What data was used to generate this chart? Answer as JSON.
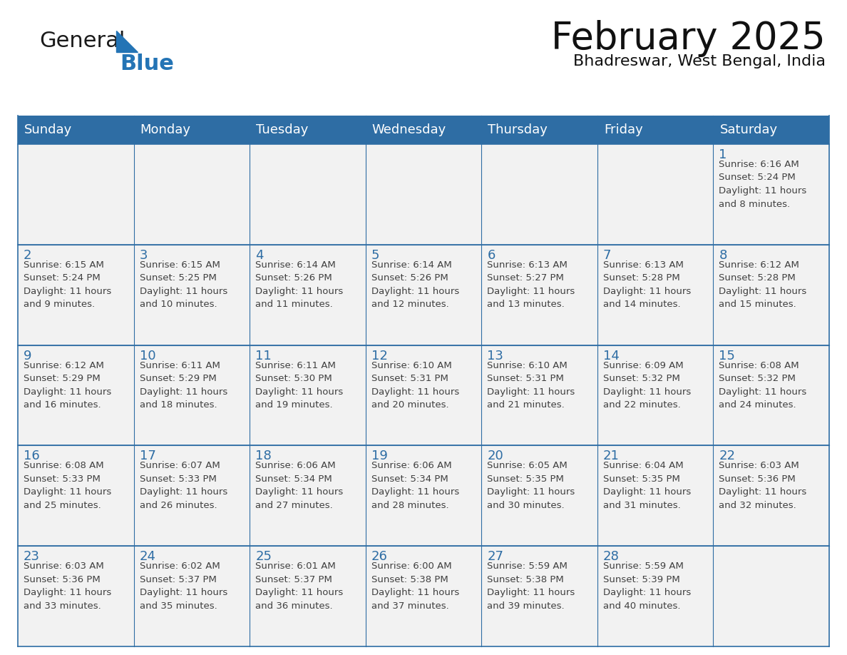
{
  "title": "February 2025",
  "subtitle": "Bhadreswar, West Bengal, India",
  "header_bg": "#2E6DA4",
  "header_text_color": "#FFFFFF",
  "cell_bg": "#F2F2F2",
  "day_number_color": "#2E6DA4",
  "cell_text_color": "#404040",
  "border_color": "#2E6DA4",
  "days_of_week": [
    "Sunday",
    "Monday",
    "Tuesday",
    "Wednesday",
    "Thursday",
    "Friday",
    "Saturday"
  ],
  "weeks": [
    [
      {
        "day": null,
        "info": null
      },
      {
        "day": null,
        "info": null
      },
      {
        "day": null,
        "info": null
      },
      {
        "day": null,
        "info": null
      },
      {
        "day": null,
        "info": null
      },
      {
        "day": null,
        "info": null
      },
      {
        "day": "1",
        "info": "Sunrise: 6:16 AM\nSunset: 5:24 PM\nDaylight: 11 hours\nand 8 minutes."
      }
    ],
    [
      {
        "day": "2",
        "info": "Sunrise: 6:15 AM\nSunset: 5:24 PM\nDaylight: 11 hours\nand 9 minutes."
      },
      {
        "day": "3",
        "info": "Sunrise: 6:15 AM\nSunset: 5:25 PM\nDaylight: 11 hours\nand 10 minutes."
      },
      {
        "day": "4",
        "info": "Sunrise: 6:14 AM\nSunset: 5:26 PM\nDaylight: 11 hours\nand 11 minutes."
      },
      {
        "day": "5",
        "info": "Sunrise: 6:14 AM\nSunset: 5:26 PM\nDaylight: 11 hours\nand 12 minutes."
      },
      {
        "day": "6",
        "info": "Sunrise: 6:13 AM\nSunset: 5:27 PM\nDaylight: 11 hours\nand 13 minutes."
      },
      {
        "day": "7",
        "info": "Sunrise: 6:13 AM\nSunset: 5:28 PM\nDaylight: 11 hours\nand 14 minutes."
      },
      {
        "day": "8",
        "info": "Sunrise: 6:12 AM\nSunset: 5:28 PM\nDaylight: 11 hours\nand 15 minutes."
      }
    ],
    [
      {
        "day": "9",
        "info": "Sunrise: 6:12 AM\nSunset: 5:29 PM\nDaylight: 11 hours\nand 16 minutes."
      },
      {
        "day": "10",
        "info": "Sunrise: 6:11 AM\nSunset: 5:29 PM\nDaylight: 11 hours\nand 18 minutes."
      },
      {
        "day": "11",
        "info": "Sunrise: 6:11 AM\nSunset: 5:30 PM\nDaylight: 11 hours\nand 19 minutes."
      },
      {
        "day": "12",
        "info": "Sunrise: 6:10 AM\nSunset: 5:31 PM\nDaylight: 11 hours\nand 20 minutes."
      },
      {
        "day": "13",
        "info": "Sunrise: 6:10 AM\nSunset: 5:31 PM\nDaylight: 11 hours\nand 21 minutes."
      },
      {
        "day": "14",
        "info": "Sunrise: 6:09 AM\nSunset: 5:32 PM\nDaylight: 11 hours\nand 22 minutes."
      },
      {
        "day": "15",
        "info": "Sunrise: 6:08 AM\nSunset: 5:32 PM\nDaylight: 11 hours\nand 24 minutes."
      }
    ],
    [
      {
        "day": "16",
        "info": "Sunrise: 6:08 AM\nSunset: 5:33 PM\nDaylight: 11 hours\nand 25 minutes."
      },
      {
        "day": "17",
        "info": "Sunrise: 6:07 AM\nSunset: 5:33 PM\nDaylight: 11 hours\nand 26 minutes."
      },
      {
        "day": "18",
        "info": "Sunrise: 6:06 AM\nSunset: 5:34 PM\nDaylight: 11 hours\nand 27 minutes."
      },
      {
        "day": "19",
        "info": "Sunrise: 6:06 AM\nSunset: 5:34 PM\nDaylight: 11 hours\nand 28 minutes."
      },
      {
        "day": "20",
        "info": "Sunrise: 6:05 AM\nSunset: 5:35 PM\nDaylight: 11 hours\nand 30 minutes."
      },
      {
        "day": "21",
        "info": "Sunrise: 6:04 AM\nSunset: 5:35 PM\nDaylight: 11 hours\nand 31 minutes."
      },
      {
        "day": "22",
        "info": "Sunrise: 6:03 AM\nSunset: 5:36 PM\nDaylight: 11 hours\nand 32 minutes."
      }
    ],
    [
      {
        "day": "23",
        "info": "Sunrise: 6:03 AM\nSunset: 5:36 PM\nDaylight: 11 hours\nand 33 minutes."
      },
      {
        "day": "24",
        "info": "Sunrise: 6:02 AM\nSunset: 5:37 PM\nDaylight: 11 hours\nand 35 minutes."
      },
      {
        "day": "25",
        "info": "Sunrise: 6:01 AM\nSunset: 5:37 PM\nDaylight: 11 hours\nand 36 minutes."
      },
      {
        "day": "26",
        "info": "Sunrise: 6:00 AM\nSunset: 5:38 PM\nDaylight: 11 hours\nand 37 minutes."
      },
      {
        "day": "27",
        "info": "Sunrise: 5:59 AM\nSunset: 5:38 PM\nDaylight: 11 hours\nand 39 minutes."
      },
      {
        "day": "28",
        "info": "Sunrise: 5:59 AM\nSunset: 5:39 PM\nDaylight: 11 hours\nand 40 minutes."
      },
      {
        "day": null,
        "info": null
      }
    ]
  ],
  "logo_text1": "General",
  "logo_text2": "Blue",
  "logo_text1_color": "#1a1a1a",
  "logo_text2_color": "#2474b5",
  "logo_triangle_color": "#2474b5",
  "title_fontsize": 38,
  "subtitle_fontsize": 16,
  "header_fontsize": 13,
  "day_num_fontsize": 13,
  "cell_info_fontsize": 9.5
}
